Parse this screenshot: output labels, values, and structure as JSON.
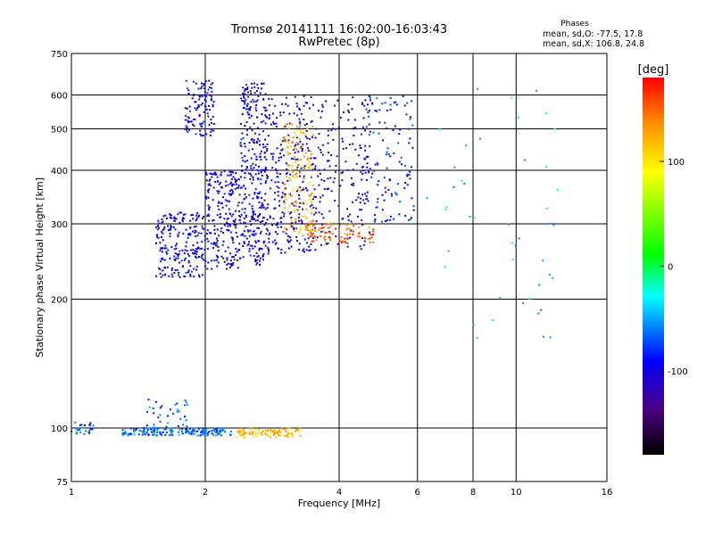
{
  "header": {
    "title_line1": "Tromsø 20141111 16:02:00-16:03:43",
    "title_line2": "RwPretec (8p)",
    "phase_heading": "Phases",
    "stat_o": "mean, sd,O: -77.5, 17.8",
    "stat_x": "mean, sd,X: 106.8, 24.8"
  },
  "colorbar": {
    "unit_label": "[deg]",
    "min": -180,
    "max": 180,
    "tick_values": [
      100,
      0,
      -100
    ],
    "tick_labels": [
      "100",
      "0",
      "-100"
    ]
  },
  "chart_data": {
    "type": "scatter",
    "xlabel": "Frequency [MHz]",
    "ylabel": "Stationary phase Virtual Height [km]",
    "x_scale": "log",
    "y_scale": "log",
    "xlim": [
      1,
      16
    ],
    "ylim": [
      75,
      750
    ],
    "x_ticks": [
      1,
      2,
      4,
      6,
      8,
      10,
      16
    ],
    "x_tick_labels": [
      "1",
      "2",
      "4",
      "6",
      "8",
      "10",
      "16"
    ],
    "y_ticks": [
      75,
      100,
      200,
      300,
      400,
      500,
      600,
      750
    ],
    "y_tick_labels": [
      "75",
      "100",
      "200",
      "300",
      "400",
      "500",
      "600",
      "750"
    ],
    "grid": true,
    "color_by": "phase (deg)",
    "clusters": [
      {
        "fmin": 1.0,
        "fmax": 1.12,
        "hmin": 96,
        "hmax": 104,
        "phase": -70,
        "n": 25
      },
      {
        "fmin": 1.3,
        "fmax": 2.2,
        "hmin": 96,
        "hmax": 100,
        "phase": -65,
        "n": 180
      },
      {
        "fmin": 1.45,
        "fmax": 1.85,
        "hmin": 100,
        "hmax": 118,
        "phase": -75,
        "n": 35
      },
      {
        "fmin": 2.1,
        "fmax": 2.3,
        "hmin": 96,
        "hmax": 100,
        "phase": -60,
        "n": 10
      },
      {
        "fmin": 2.35,
        "fmax": 3.3,
        "hmin": 95,
        "hmax": 100,
        "phase": 120,
        "n": 90
      },
      {
        "fmin": 1.55,
        "fmax": 2.0,
        "hmin": 225,
        "hmax": 320,
        "phase": -100,
        "n": 220
      },
      {
        "fmin": 1.8,
        "fmax": 2.1,
        "hmin": 480,
        "hmax": 650,
        "phase": -95,
        "n": 110
      },
      {
        "fmin": 2.0,
        "fmax": 2.4,
        "hmin": 235,
        "hmax": 400,
        "phase": -105,
        "n": 220
      },
      {
        "fmin": 2.4,
        "fmax": 2.75,
        "hmin": 240,
        "hmax": 640,
        "phase": -100,
        "n": 320
      },
      {
        "fmin": 2.75,
        "fmax": 3.5,
        "hmin": 255,
        "hmax": 600,
        "phase": -110,
        "n": 260
      },
      {
        "fmin": 3.0,
        "fmax": 3.5,
        "hmin": 280,
        "hmax": 520,
        "phase": 120,
        "n": 150
      },
      {
        "fmin": 3.5,
        "fmax": 4.7,
        "hmin": 260,
        "hmax": 600,
        "phase": -110,
        "n": 170
      },
      {
        "fmin": 3.4,
        "fmax": 4.8,
        "hmin": 270,
        "hmax": 300,
        "phase": 150,
        "n": 90
      },
      {
        "fmin": 4.5,
        "fmax": 5.9,
        "hmin": 300,
        "hmax": 600,
        "phase": -90,
        "n": 130
      },
      {
        "fmin": 6.0,
        "fmax": 12.5,
        "hmin": 160,
        "hmax": 650,
        "phase": -40,
        "n": 45
      }
    ]
  }
}
